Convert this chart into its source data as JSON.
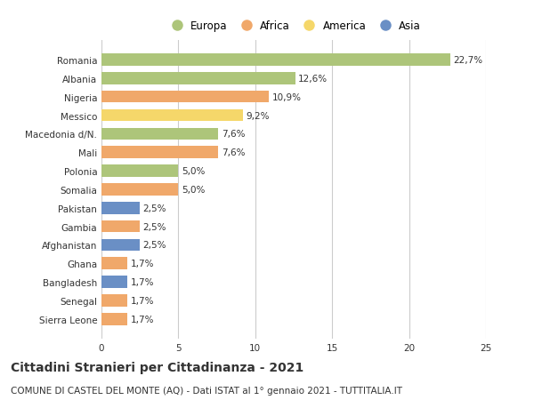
{
  "countries": [
    "Romania",
    "Albania",
    "Nigeria",
    "Messico",
    "Macedonia d/N.",
    "Mali",
    "Polonia",
    "Somalia",
    "Pakistan",
    "Gambia",
    "Afghanistan",
    "Ghana",
    "Bangladesh",
    "Senegal",
    "Sierra Leone"
  ],
  "values": [
    22.7,
    12.6,
    10.9,
    9.2,
    7.6,
    7.6,
    5.0,
    5.0,
    2.5,
    2.5,
    2.5,
    1.7,
    1.7,
    1.7,
    1.7
  ],
  "labels": [
    "22,7%",
    "12,6%",
    "10,9%",
    "9,2%",
    "7,6%",
    "7,6%",
    "5,0%",
    "5,0%",
    "2,5%",
    "2,5%",
    "2,5%",
    "1,7%",
    "1,7%",
    "1,7%",
    "1,7%"
  ],
  "continents": [
    "Europa",
    "Europa",
    "Africa",
    "America",
    "Europa",
    "Africa",
    "Europa",
    "Africa",
    "Asia",
    "Africa",
    "Asia",
    "Africa",
    "Asia",
    "Africa",
    "Africa"
  ],
  "continent_colors": {
    "Europa": "#adc57a",
    "Africa": "#f0a86a",
    "America": "#f5d76a",
    "Asia": "#6a8fc5"
  },
  "legend_order": [
    "Europa",
    "Africa",
    "America",
    "Asia"
  ],
  "title": "Cittadini Stranieri per Cittadinanza - 2021",
  "subtitle": "COMUNE DI CASTEL DEL MONTE (AQ) - Dati ISTAT al 1° gennaio 2021 - TUTTITALIA.IT",
  "xlim": [
    0,
    25
  ],
  "xticks": [
    0,
    5,
    10,
    15,
    20,
    25
  ],
  "background_color": "#ffffff",
  "bar_height": 0.65,
  "grid_color": "#cccccc",
  "text_color": "#333333",
  "title_fontsize": 10,
  "subtitle_fontsize": 7.5,
  "label_fontsize": 7.5,
  "tick_fontsize": 7.5,
  "legend_fontsize": 8.5
}
